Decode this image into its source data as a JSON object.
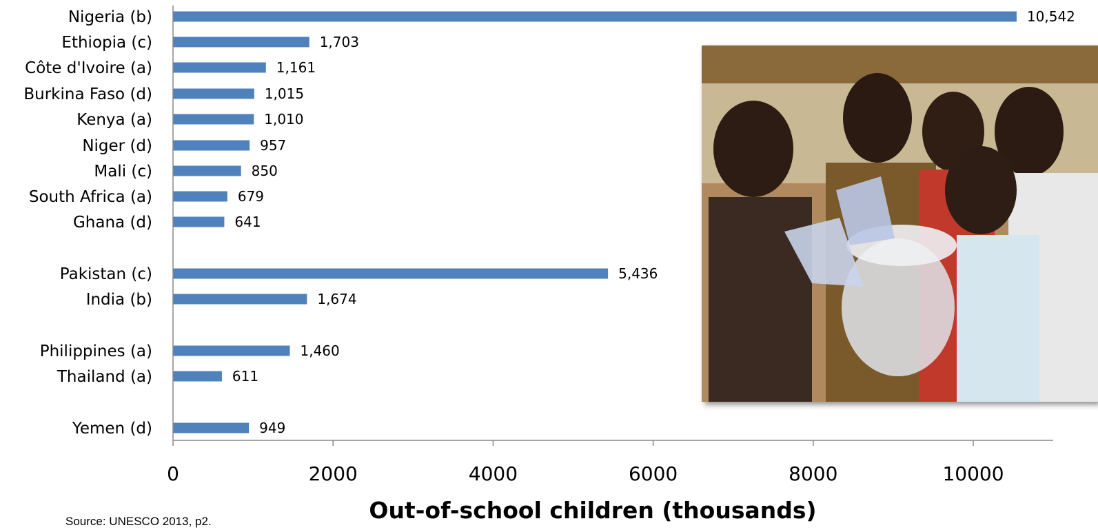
{
  "chart_data": {
    "type": "bar",
    "orientation": "horizontal",
    "categories": [
      "Nigeria (b)",
      "Ethiopia (c)",
      "Côte d'Ivoire (a)",
      "Burkina Faso (d)",
      "Kenya (a)",
      "Niger (d)",
      "Mali (c)",
      "South Africa (a)",
      "Ghana (d)",
      "Pakistan (c)",
      "India (b)",
      "Philippines (a)",
      "Thailand (a)",
      "Yemen (d)"
    ],
    "values": [
      10542,
      1703,
      1161,
      1015,
      1010,
      957,
      850,
      679,
      641,
      5436,
      1674,
      1460,
      611,
      949
    ],
    "value_labels": [
      "10,542",
      "1,703",
      "1,161",
      "1,015",
      "1,010",
      "957",
      "850",
      "679",
      "641",
      "5,436",
      "1,674",
      "1,460",
      "611",
      "949"
    ],
    "groups": [
      [
        "Nigeria (b)",
        "Ethiopia (c)",
        "Côte d'Ivoire (a)",
        "Burkina Faso (d)",
        "Kenya (a)",
        "Niger (d)",
        "Mali (c)",
        "South Africa (a)",
        "Ghana (d)"
      ],
      [
        "Pakistan (c)",
        "India (b)"
      ],
      [
        "Philippines (a)",
        "Thailand (a)"
      ],
      [
        "Yemen (d)"
      ]
    ],
    "xticks": [
      0,
      2000,
      4000,
      6000,
      8000,
      10000
    ],
    "xlim": [
      0,
      11000
    ],
    "xlabel": "Out-of-school children (thousands)",
    "ylabel": "",
    "title": "",
    "grid": false,
    "bar_color": "#4f81bd"
  },
  "source_note": "Source: UNESCO 2013, p2.",
  "photo": {
    "colors": {
      "sky": "#b7c9cf",
      "wall": "#c8b893",
      "ground": "#cfa674",
      "skin": "#3a2418",
      "jug": "#dfe4ea"
    }
  }
}
